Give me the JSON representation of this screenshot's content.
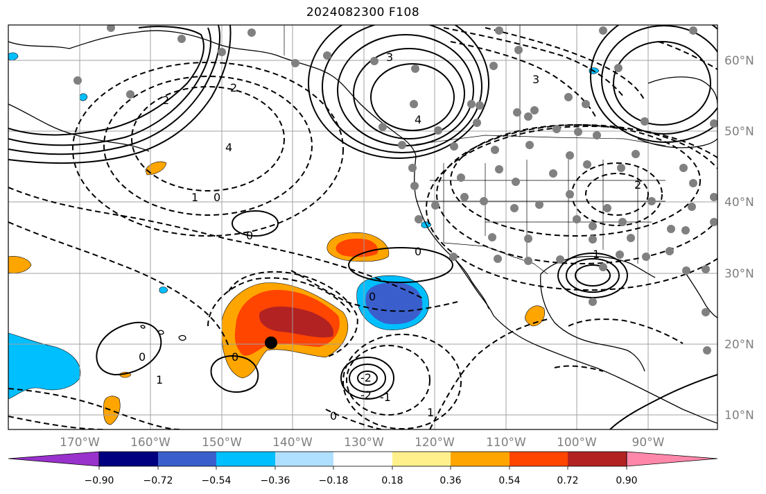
{
  "title": "2024082300 F108",
  "map": {
    "latitude_labels": [
      "60°N",
      "50°N",
      "40°N",
      "30°N",
      "20°N",
      "10°N"
    ],
    "longitude_labels": [
      "170°W",
      "160°W",
      "150°W",
      "140°W",
      "130°W",
      "120°W",
      "110°W",
      "100°W",
      "90°W"
    ],
    "grid": true,
    "colors": {
      "coast": "#000000",
      "grid": "#a0a0a0",
      "station": "#808080"
    },
    "contour_labels": [
      "0",
      "0",
      "0",
      "0",
      "0",
      "0",
      "0",
      "1",
      "1",
      "1",
      "2",
      "2",
      "3",
      "3",
      "4",
      "4",
      "-1",
      "-2",
      "-2",
      "1",
      "2"
    ]
  },
  "colorbar": {
    "tick_labels": [
      "−0.90",
      "−0.72",
      "−0.54",
      "−0.36",
      "−0.18",
      "0.18",
      "0.36",
      "0.54",
      "0.72",
      "0.90"
    ],
    "colors": [
      "#9932cc",
      "#000080",
      "#3a5fcd",
      "#00bfff",
      "#b0e0ff",
      "#ffffff",
      "#fff08c",
      "#ffa500",
      "#ff4500",
      "#b22222",
      "#ff88aa"
    ]
  }
}
